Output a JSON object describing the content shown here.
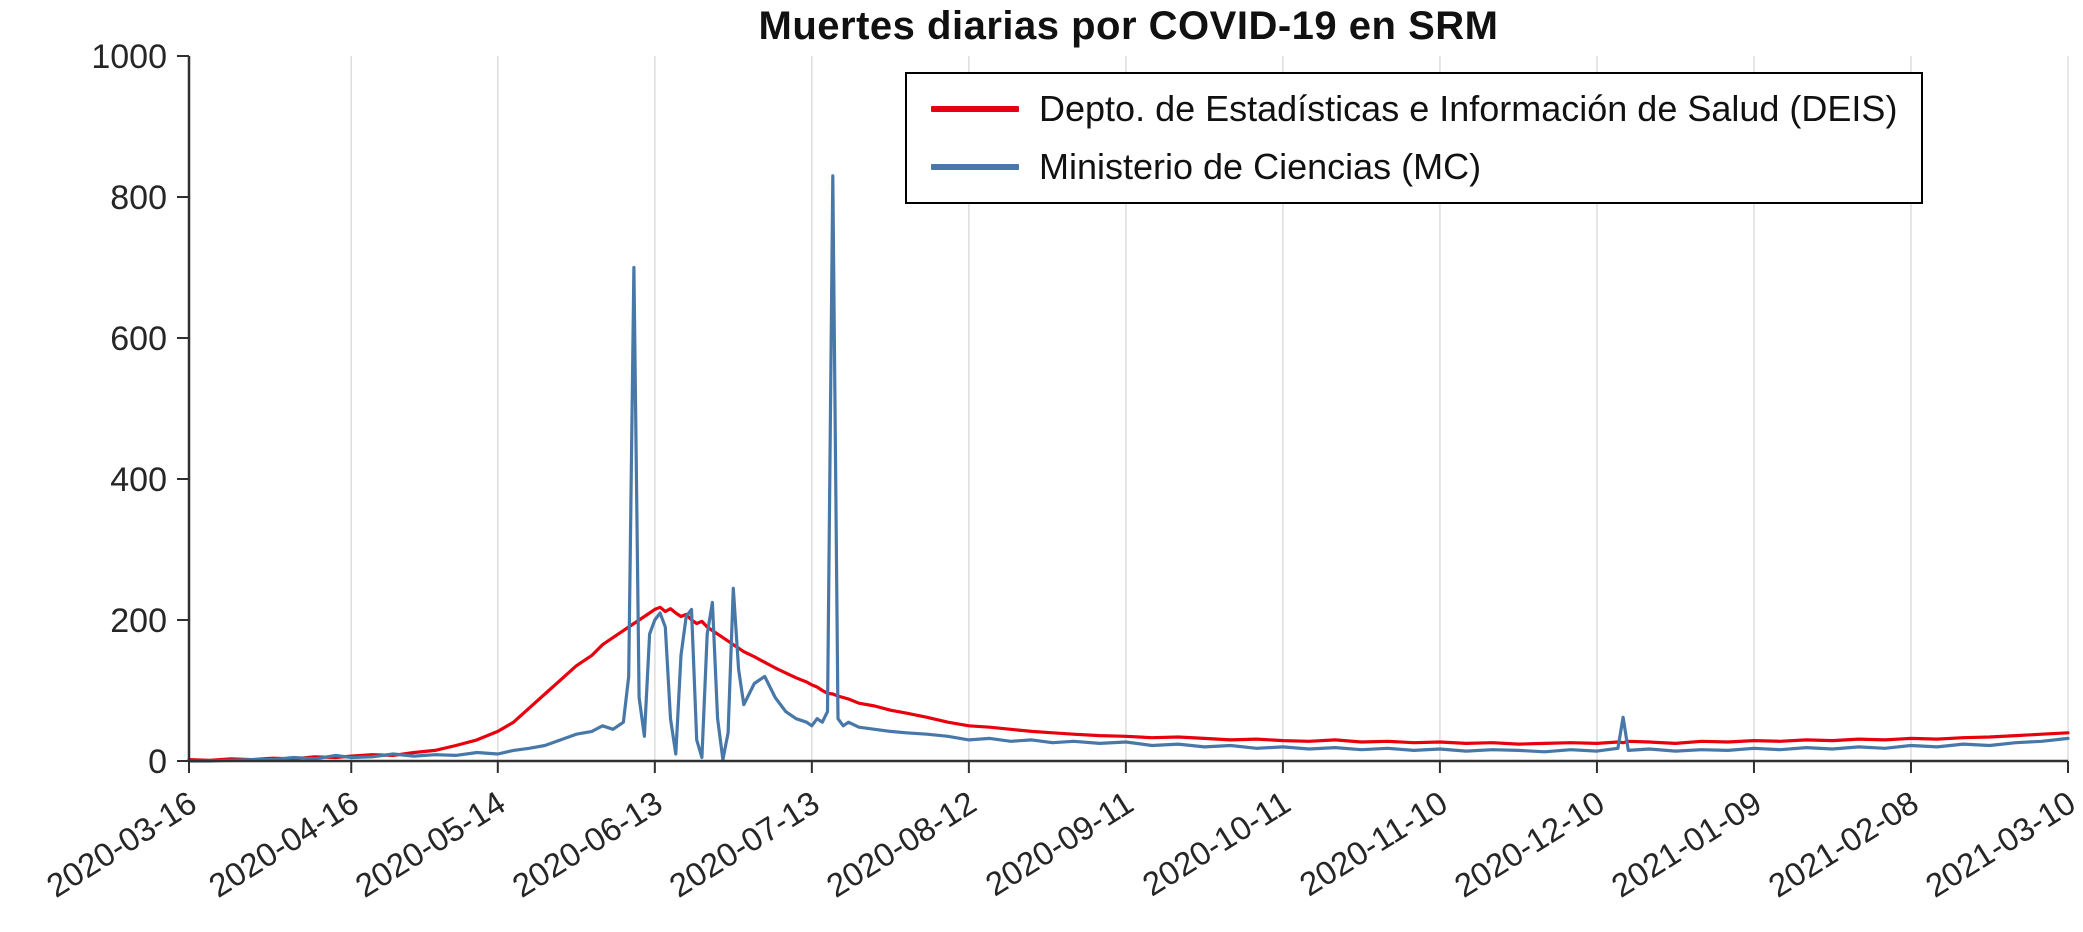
{
  "title": "Muertes diarias por COVID-19 en SRM",
  "colors": {
    "deis_red": "#e8000d",
    "mc_blue": "#4878a8",
    "grid": "#dfdfdf",
    "axis": "#303030"
  },
  "chart_data": {
    "type": "line",
    "title": "Muertes diarias por COVID-19 en SRM",
    "xlabel": "",
    "ylabel": "",
    "ylim": [
      0,
      1000
    ],
    "y_ticks": [
      0,
      200,
      400,
      600,
      800,
      1000
    ],
    "x_ticks": [
      "2020-03-16",
      "2020-04-16",
      "2020-05-14",
      "2020-06-13",
      "2020-07-13",
      "2020-08-12",
      "2020-09-11",
      "2020-10-11",
      "2020-11-10",
      "2020-12-10",
      "2021-01-09",
      "2021-02-08",
      "2021-03-10"
    ],
    "grid": "vertical",
    "legend_position": "top-right-inside",
    "x": [
      "2020-03-16",
      "2020-03-20",
      "2020-03-24",
      "2020-03-28",
      "2020-04-01",
      "2020-04-05",
      "2020-04-09",
      "2020-04-13",
      "2020-04-16",
      "2020-04-20",
      "2020-04-24",
      "2020-04-28",
      "2020-05-02",
      "2020-05-06",
      "2020-05-10",
      "2020-05-14",
      "2020-05-17",
      "2020-05-20",
      "2020-05-23",
      "2020-05-26",
      "2020-05-29",
      "2020-06-01",
      "2020-06-03",
      "2020-06-05",
      "2020-06-07",
      "2020-06-08",
      "2020-06-09",
      "2020-06-10",
      "2020-06-11",
      "2020-06-12",
      "2020-06-13",
      "2020-06-14",
      "2020-06-15",
      "2020-06-16",
      "2020-06-17",
      "2020-06-18",
      "2020-06-19",
      "2020-06-20",
      "2020-06-21",
      "2020-06-22",
      "2020-06-23",
      "2020-06-24",
      "2020-06-25",
      "2020-06-26",
      "2020-06-27",
      "2020-06-28",
      "2020-06-29",
      "2020-06-30",
      "2020-07-02",
      "2020-07-04",
      "2020-07-06",
      "2020-07-08",
      "2020-07-10",
      "2020-07-12",
      "2020-07-13",
      "2020-07-14",
      "2020-07-15",
      "2020-07-16",
      "2020-07-17",
      "2020-07-18",
      "2020-07-19",
      "2020-07-20",
      "2020-07-22",
      "2020-07-25",
      "2020-07-28",
      "2020-07-31",
      "2020-08-04",
      "2020-08-08",
      "2020-08-12",
      "2020-08-16",
      "2020-08-20",
      "2020-08-24",
      "2020-08-28",
      "2020-09-01",
      "2020-09-06",
      "2020-09-11",
      "2020-09-16",
      "2020-09-21",
      "2020-09-26",
      "2020-10-01",
      "2020-10-06",
      "2020-10-11",
      "2020-10-16",
      "2020-10-21",
      "2020-10-26",
      "2020-10-31",
      "2020-11-05",
      "2020-11-10",
      "2020-11-15",
      "2020-11-20",
      "2020-11-25",
      "2020-11-30",
      "2020-12-05",
      "2020-12-10",
      "2020-12-14",
      "2020-12-15",
      "2020-12-16",
      "2020-12-20",
      "2020-12-25",
      "2020-12-30",
      "2021-01-04",
      "2021-01-09",
      "2021-01-14",
      "2021-01-19",
      "2021-01-24",
      "2021-01-29",
      "2021-02-03",
      "2021-02-08",
      "2021-02-13",
      "2021-02-18",
      "2021-02-23",
      "2021-02-28",
      "2021-03-05",
      "2021-03-10"
    ],
    "series": [
      {
        "name": "Depto. de Estadísticas e Información de Salud (DEIS)",
        "color": "#e8000d",
        "values": [
          2,
          1,
          3,
          2,
          4,
          3,
          6,
          5,
          7,
          9,
          8,
          12,
          15,
          22,
          30,
          42,
          55,
          75,
          95,
          115,
          135,
          150,
          165,
          175,
          185,
          190,
          195,
          200,
          205,
          210,
          215,
          218,
          212,
          216,
          210,
          205,
          208,
          200,
          195,
          198,
          190,
          185,
          180,
          175,
          170,
          165,
          160,
          155,
          148,
          140,
          132,
          125,
          118,
          112,
          108,
          105,
          100,
          96,
          95,
          92,
          90,
          88,
          82,
          78,
          72,
          68,
          62,
          55,
          50,
          48,
          45,
          42,
          40,
          38,
          36,
          35,
          33,
          34,
          32,
          30,
          31,
          29,
          28,
          30,
          27,
          28,
          26,
          27,
          25,
          26,
          24,
          25,
          26,
          25,
          27,
          26,
          28,
          27,
          25,
          28,
          27,
          29,
          28,
          30,
          29,
          31,
          30,
          32,
          31,
          33,
          34,
          36,
          38,
          40
        ]
      },
      {
        "name": "Ministerio de Ciencias (MC)",
        "color": "#4878a8",
        "values": [
          0,
          0,
          1,
          2,
          2,
          5,
          3,
          8,
          5,
          6,
          10,
          7,
          9,
          8,
          12,
          10,
          15,
          18,
          22,
          30,
          38,
          42,
          50,
          45,
          55,
          120,
          700,
          90,
          35,
          180,
          200,
          210,
          190,
          60,
          10,
          150,
          205,
          215,
          30,
          5,
          180,
          225,
          60,
          2,
          40,
          245,
          130,
          80,
          110,
          120,
          90,
          70,
          60,
          55,
          50,
          60,
          55,
          70,
          830,
          60,
          50,
          55,
          48,
          45,
          42,
          40,
          38,
          35,
          30,
          32,
          28,
          30,
          26,
          28,
          25,
          27,
          22,
          24,
          20,
          22,
          18,
          20,
          17,
          19,
          16,
          18,
          15,
          17,
          14,
          16,
          15,
          13,
          16,
          14,
          18,
          62,
          15,
          17,
          14,
          16,
          15,
          18,
          16,
          19,
          17,
          20,
          18,
          22,
          20,
          24,
          22,
          26,
          28,
          32
        ]
      }
    ]
  }
}
